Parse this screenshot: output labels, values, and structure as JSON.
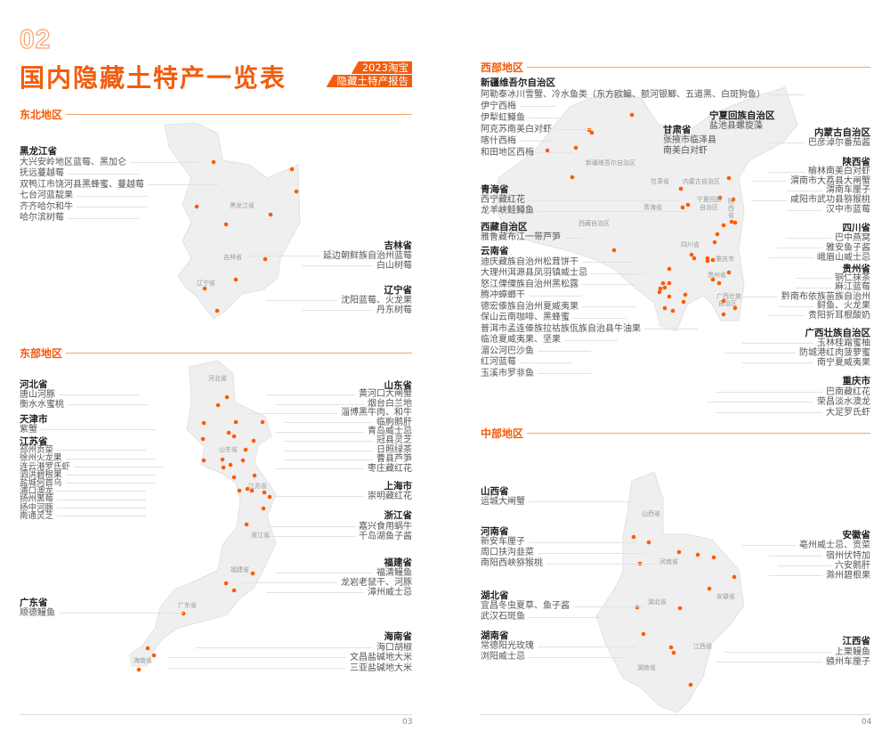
{
  "header": {
    "section_number": "02",
    "title": "国内隐藏土特产一览表",
    "badge_line1": "2023淘宝",
    "badge_line2": "隐藏土特产报告"
  },
  "accent_color": "#f25c0c",
  "regions": {
    "northeast": {
      "title": "东北地区",
      "map_labels": [
        "黑龙江省",
        "吉林省",
        "辽宁省"
      ],
      "provinces": [
        {
          "name": "黑龙江省",
          "items": [
            "大兴安岭地区蓝莓、黑加仑",
            "抚远蔓越莓",
            "双鸭江市饶河县黑蜂蜜、蔓越莓",
            "七台河蓝靛果",
            "齐齐哈尔和牛",
            "哈尔滨树莓"
          ]
        },
        {
          "name": "吉林省",
          "items": [
            "延边朝鲜族自治州蓝莓",
            "白山树莓"
          ]
        },
        {
          "name": "辽宁省",
          "items": [
            "沈阳蓝莓、火龙果",
            "丹东树莓"
          ]
        }
      ]
    },
    "east": {
      "title": "东部地区",
      "map_labels": [
        "河北省",
        "山东省",
        "江苏省",
        "浙江省",
        "福建省",
        "广东省",
        "海南省"
      ],
      "provinces": [
        {
          "name": "河北省",
          "items": [
            "唐山河豚",
            "衡水水蜜桃"
          ]
        },
        {
          "name": "天津市",
          "items": [
            "紫蟹"
          ]
        },
        {
          "name": "江苏省",
          "items": [
            "邳州贡菜",
            "徐州火龙果",
            "连云港罗氏虾",
            "泗洪碧根果",
            "盐城何首乌",
            "浦口澳龙",
            "扬州黑莓",
            "扬中河豚",
            "南通灵芝"
          ]
        },
        {
          "name": "山东省",
          "items": [
            "黄河口大闸蟹",
            "烟台白兰地",
            "淄博黑牛肉、和牛",
            "临朐鹅肝",
            "青岛威士忌",
            "冠县灵芝",
            "日照绿茶",
            "曹县芦笋",
            "枣庄藏红花"
          ]
        },
        {
          "name": "上海市",
          "items": [
            "崇明藏红花"
          ]
        },
        {
          "name": "浙江省",
          "items": [
            "嘉兴食用蜗牛",
            "千岛湖鱼子酱"
          ]
        },
        {
          "name": "福建省",
          "items": [
            "福清鳗鱼",
            "龙岩老鼠干、河豚",
            "漳州威士忌"
          ]
        },
        {
          "name": "广东省",
          "items": [
            "顺德鳗鱼"
          ]
        },
        {
          "name": "海南省",
          "items": [
            "海口胡椒",
            "文昌盐碱地大米",
            "三亚盐碱地大米"
          ]
        }
      ]
    },
    "west": {
      "title": "西部地区",
      "map_labels": [
        "新疆维吾尔自治区",
        "甘肃省",
        "内蒙古自治区",
        "青海省",
        "宁夏回族",
        "自治区",
        "陕西省",
        "西藏自治区",
        "四川省",
        "重庆市",
        "贵州省",
        "广西壮族",
        "自治区"
      ],
      "provinces": [
        {
          "name": "新疆维吾尔自治区",
          "items": [
            "阿勒泰冰川雪蟹、冷水鱼类（东方欧鳊、额河银鲫、五道黑、白斑狗鱼）",
            "伊宁西梅",
            "伊犁虹鳟鱼",
            "阿克苏南美白对虾",
            "喀什西梅",
            "和田地区西梅"
          ]
        },
        {
          "name": "青海省",
          "items": [
            "西宁藏红花",
            "龙羊峡鲑鳟鱼"
          ]
        },
        {
          "name": "西藏自治区",
          "items": [
            "雅鲁藏布江一带芦笋"
          ]
        },
        {
          "name": "云南省",
          "items": [
            "迪庆藏族自治州松茸饼干",
            "大理州洱源县凤羽镇威士忌",
            "怒江傈僳族自治州黑松露",
            "腾冲蟑螂干",
            "德宏傣族自治州夏威夷果",
            "保山云南咖啡、黑蜂蜜",
            "普洱市孟连傣族拉祜族佤族自治县牛油果",
            "临沧夏威夷果、坚果",
            "湄公河巴沙鱼",
            "红河蓝莓",
            "玉溪市罗非鱼"
          ]
        },
        {
          "name": "甘肃省",
          "items": [
            "张掖市临泽县",
            "南美白对虾"
          ]
        },
        {
          "name": "宁夏回族自治区",
          "items": [
            "盐池县螺旋藻"
          ]
        },
        {
          "name": "内蒙古自治区",
          "items": [
            "巴彦淖尔番茄酱"
          ]
        },
        {
          "name": "陕西省",
          "items": [
            "榆林南美白对虾",
            "渭南市大荔县大闸蟹",
            "渭南车厘子",
            "咸阳市武功县猕猴桃",
            "汉中市蓝莓"
          ]
        },
        {
          "name": "四川省",
          "items": [
            "巴中燕窝",
            "雅安鱼子酱",
            "峨眉山威士忌"
          ]
        },
        {
          "name": "贵州省",
          "items": [
            "铜仁抹茶",
            "麻江蓝莓",
            "黔南布依族苗族自治州",
            "鲟鱼、火龙果",
            "贵阳折耳根酸奶"
          ]
        },
        {
          "name": "广西壮族自治区",
          "items": [
            "玉林桂霜蜜柚",
            "防城港红肉菠萝蜜",
            "南宁夏威夷果"
          ]
        },
        {
          "name": "重庆市",
          "items": [
            "巴南藏红花",
            "荣昌淡水澳龙",
            "大足罗氏虾"
          ]
        }
      ]
    },
    "central": {
      "title": "中部地区",
      "map_labels": [
        "山西省",
        "河南省",
        "湖北省",
        "安徽省",
        "江西省",
        "湖南省"
      ],
      "provinces": [
        {
          "name": "山西省",
          "items": [
            "运城大闸蟹"
          ]
        },
        {
          "name": "河南省",
          "items": [
            "新安车厘子",
            "周口扶沟韭菜",
            "南阳西峡猕猴桃"
          ]
        },
        {
          "name": "湖北省",
          "items": [
            "宜昌冬虫夏草、鱼子酱",
            "武汉石斑鱼"
          ]
        },
        {
          "name": "湖南省",
          "items": [
            "常德阳光玫瑰",
            "浏阳威士忌"
          ]
        },
        {
          "name": "安徽省",
          "items": [
            "亳州威士忌、贡菜",
            "宿州伏特加",
            "六安鹅肝",
            "滁州碧根果"
          ]
        },
        {
          "name": "江西省",
          "items": [
            "上栗鳗鱼",
            "赣州车厘子"
          ]
        }
      ]
    }
  },
  "footer": {
    "left_page": "03",
    "right_page": "04"
  }
}
